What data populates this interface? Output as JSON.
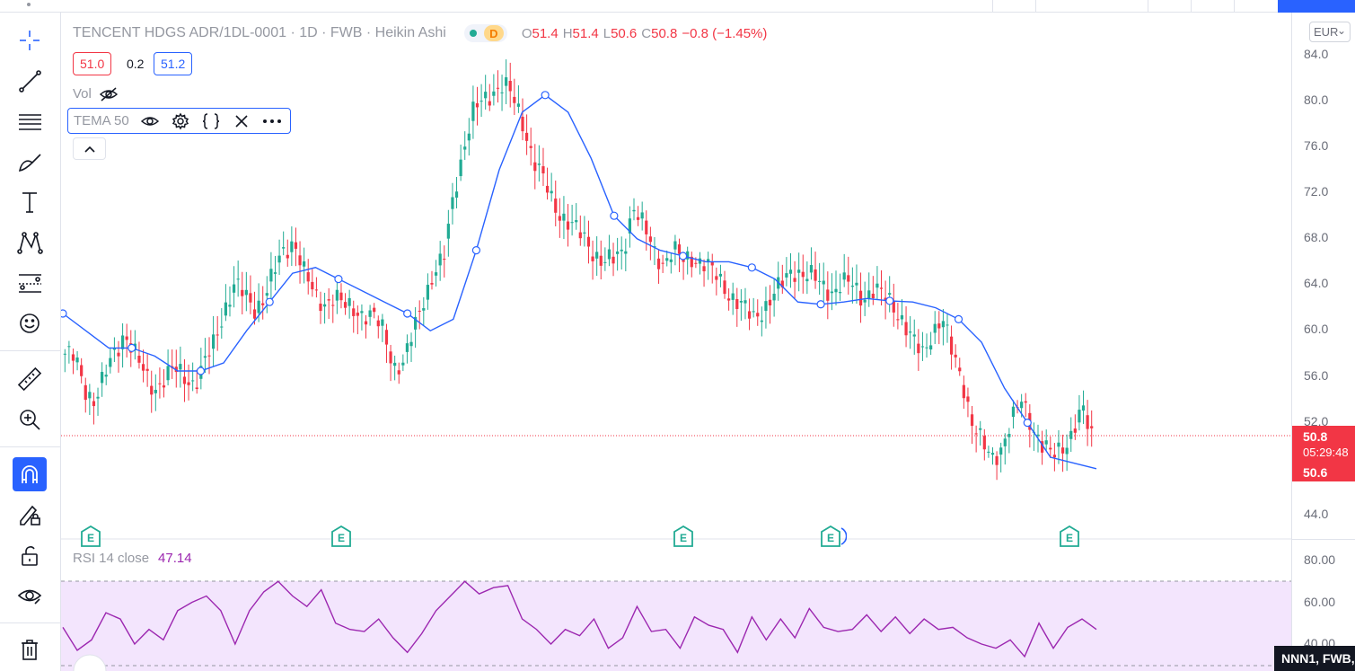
{
  "legend": {
    "title": "TENCENT HDGS ADR/1DL-0001 · 1D · FWB · Heikin Ashi",
    "d_badge": "D",
    "open_key": "O",
    "open": "51.4",
    "high_key": "H",
    "high": "51.4",
    "low_key": "L",
    "low": "50.6",
    "close_key": "C",
    "close": "50.8",
    "change": "−0.8 (−1.45%)"
  },
  "bid": "51.0",
  "spread": "0.2",
  "ask": "51.2",
  "volume_label": "Vol",
  "tema_label": "TEMA 50",
  "rsi": {
    "label": "RSI 14 close",
    "value": "47.14"
  },
  "currency": "EUR",
  "price_ticks": [
    "84.0",
    "80.0",
    "76.0",
    "72.0",
    "68.0",
    "64.0",
    "60.0",
    "56.0",
    "52.0",
    "44.0"
  ],
  "rsi_ticks": [
    "80.00",
    "60.00",
    "40.00"
  ],
  "last_price": "50.8",
  "countdown": "05:29:48",
  "low_tag": "50.6",
  "symbol_tag": "NNN1, FWB,",
  "earnings_badge": "E",
  "icons": [
    "crosshair-icon",
    "trend-line-icon",
    "fib-icon",
    "brush-icon",
    "text-icon",
    "pattern-icon",
    "forecast-icon",
    "emoji-icon",
    "ruler-icon",
    "zoom-in-icon",
    "magnet-icon",
    "lock-drawing-icon",
    "lock-icon",
    "eye-icon",
    "trash-icon"
  ],
  "colors": {
    "up": "#22ab94",
    "down": "#f23645",
    "tema": "#2962ff",
    "rsi": "#9c27b0",
    "rsi_band": "#f3e5fd"
  },
  "chart_data": {
    "type": "candlestick",
    "price_axis": {
      "min": 44,
      "max": 84
    },
    "close_path": [
      58,
      57.5,
      55,
      54,
      56,
      58,
      60,
      58,
      56,
      55,
      56,
      56.5,
      56,
      55.5,
      57,
      59,
      62,
      64,
      63,
      62,
      63,
      65,
      67,
      68,
      65,
      63,
      62.5,
      63,
      62,
      62,
      61.5,
      61,
      60,
      57,
      57,
      60,
      63,
      65,
      66,
      72,
      76,
      79,
      80,
      81,
      81.5,
      80,
      78,
      75,
      73,
      71,
      70,
      69,
      68,
      67,
      66,
      66,
      67,
      71,
      69,
      67,
      66,
      67,
      66,
      66.5,
      66,
      65,
      64,
      63,
      62,
      61,
      62,
      63,
      64,
      65.5,
      65,
      64.5,
      64,
      63.5,
      64,
      64,
      63,
      63.5,
      63,
      62.5,
      61,
      59,
      58,
      60,
      61,
      58,
      56,
      52,
      50,
      49,
      50,
      52,
      54,
      52,
      50,
      49,
      50,
      51,
      53,
      51
    ],
    "tema_path": [
      61.5,
      60,
      58.5,
      58.5,
      57.8,
      56.5,
      56.5,
      57.2,
      60,
      62.5,
      65,
      65.5,
      64.5,
      63.5,
      62.5,
      61.5,
      60,
      61,
      67,
      74,
      79,
      80.5,
      79,
      75,
      70,
      68,
      67,
      66.5,
      66,
      66,
      65.5,
      64.5,
      62.5,
      62.3,
      62.5,
      62.8,
      62.6,
      62.5,
      62,
      61,
      59,
      55,
      52,
      49,
      48.5,
      48
    ],
    "rsi_path": [
      48,
      37,
      42,
      55,
      52,
      40,
      47,
      42,
      56,
      60,
      63,
      56,
      40,
      56,
      65,
      70,
      63,
      58,
      66,
      50,
      47,
      46,
      52,
      43,
      36,
      45,
      56,
      63,
      70,
      64,
      67,
      68,
      52,
      47,
      40,
      47,
      44,
      52,
      38,
      43,
      58,
      46,
      47,
      38,
      53,
      49,
      47,
      36,
      53,
      42,
      52,
      43,
      57,
      48,
      46,
      47,
      54,
      46,
      53,
      45,
      52,
      47,
      48,
      43,
      40,
      38,
      42,
      34,
      50,
      38,
      48,
      52,
      47
    ]
  }
}
